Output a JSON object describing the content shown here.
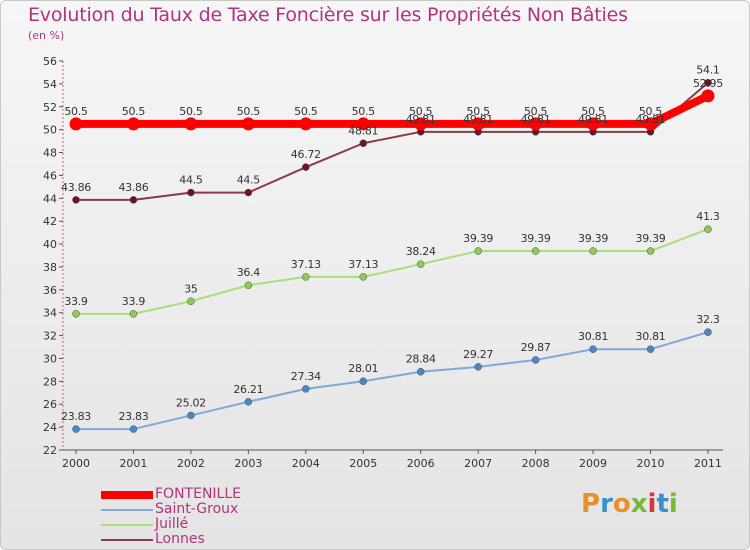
{
  "title": "Evolution du Taux de Taxe Foncière sur les Propriétés Non Bâties",
  "unit_label": "(en %)",
  "logo_text": "Proxiti",
  "colors": {
    "title": "#b0357a",
    "legend_text": "#b0357a",
    "fontenille": "#ff0000",
    "saint_groux": "#4f8fcf",
    "juille": "#90d060",
    "lonnes": "#7a2030"
  },
  "chart_data": {
    "type": "line",
    "title": "Evolution du Taux de Taxe Foncière sur les Propriétés Non Bâties",
    "ylabel": "(en %)",
    "xlabel": "",
    "x": [
      "2000",
      "2001",
      "2002",
      "2003",
      "2004",
      "2005",
      "2006",
      "2007",
      "2008",
      "2009",
      "2010",
      "2011"
    ],
    "ylim": [
      22,
      56
    ],
    "yticks": [
      22,
      24,
      26,
      28,
      30,
      32,
      34,
      36,
      38,
      40,
      42,
      44,
      46,
      48,
      50,
      52,
      54,
      56
    ],
    "grid": false,
    "legend_position": "bottom-left",
    "series": [
      {
        "name": "FONTENILLE",
        "color": "#ff0000",
        "marker": "#ff0000",
        "width": 8,
        "values": [
          50.5,
          50.5,
          50.5,
          50.5,
          50.5,
          50.5,
          50.5,
          50.5,
          50.5,
          50.5,
          50.5,
          52.95
        ],
        "labels": [
          "50.5",
          "50.5",
          "50.5",
          "50.5",
          "50.5",
          "50.5",
          "50.5",
          "50.5",
          "50.5",
          "50.5",
          "50.5",
          "52.95"
        ]
      },
      {
        "name": "Saint-Groux",
        "color": "#7fa9d8",
        "marker": "#4a86c8",
        "width": 2,
        "values": [
          23.83,
          23.83,
          25.02,
          26.21,
          27.34,
          28.01,
          28.84,
          29.27,
          29.87,
          30.81,
          30.81,
          32.3
        ],
        "labels": [
          "23.83",
          "23.83",
          "25.02",
          "26.21",
          "27.34",
          "28.01",
          "28.84",
          "29.27",
          "29.87",
          "30.81",
          "30.81",
          "32.3"
        ]
      },
      {
        "name": "Juillé",
        "color": "#a8de7c",
        "marker": "#8ccc55",
        "width": 2,
        "values": [
          33.9,
          33.9,
          35,
          36.4,
          37.13,
          37.13,
          38.24,
          39.39,
          39.39,
          39.39,
          39.39,
          41.3
        ],
        "labels": [
          "33.9",
          "33.9",
          "35",
          "36.4",
          "37.13",
          "37.13",
          "38.24",
          "39.39",
          "39.39",
          "39.39",
          "39.39",
          "41.3"
        ]
      },
      {
        "name": "Lonnes",
        "color": "#8a3a48",
        "marker": "#6a1525",
        "width": 2,
        "values": [
          43.86,
          43.86,
          44.5,
          44.5,
          46.72,
          48.81,
          49.81,
          49.81,
          49.81,
          49.81,
          49.81,
          54.1
        ],
        "labels": [
          "43.86",
          "43.86",
          "44.5",
          "44.5",
          "46.72",
          "48.81",
          "49.81",
          "49.81",
          "49.81",
          "49.81",
          "49.81",
          "54.1"
        ]
      }
    ]
  }
}
